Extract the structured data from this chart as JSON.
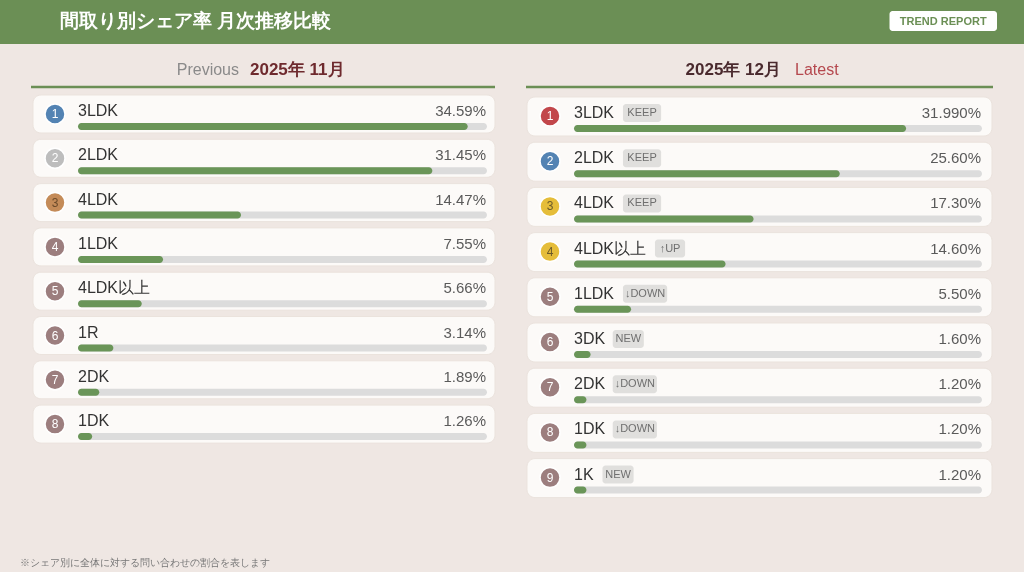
{
  "chart_data": [
    {
      "type": "other",
      "title": "間取り別シェア率 月次推移比較",
      "annotations": [
        "TREND REPORT"
      ]
    },
    {
      "type": "bar",
      "orientation": "horizontal",
      "title": "2025年 11月",
      "subtitle": "Previous",
      "categories": [
        "3LDK",
        "2LDK",
        "4LDK",
        "1LDK",
        "4LDK以上",
        "1R",
        "2DK",
        "1DK"
      ],
      "y2_categories": [
        "1",
        "2",
        "3",
        "4",
        "5",
        "6",
        "7",
        "8"
      ],
      "values": [
        34.59,
        31.45,
        14.47,
        7.55,
        5.66,
        3.14,
        1.89,
        1.26
      ],
      "value_labels": [
        "34.59%",
        "31.45%",
        "14.47%",
        "7.55%",
        "5.66%",
        "3.14%",
        "1.89%",
        "1.26%"
      ],
      "color": "#6a9558",
      "xlim": [
        0,
        36.3
      ],
      "tick_labels": false
    },
    {
      "type": "bar",
      "orientation": "horizontal",
      "title": "2025年 12月",
      "subtitle": "Latest",
      "categories": [
        "3LDK",
        "2LDK",
        "4LDK",
        "4LDK以上",
        "1LDK",
        "3DK",
        "2DK",
        "1DK",
        "1K"
      ],
      "y2_categories": [
        "1",
        "2",
        "3",
        "4",
        "5",
        "6",
        "7",
        "8",
        "9"
      ],
      "values": [
        31.99,
        25.6,
        17.3,
        14.6,
        5.5,
        1.6,
        1.2,
        1.2,
        1.2
      ],
      "value_labels": [
        "31.990%",
        "25.60%",
        "17.30%",
        "14.60%",
        "5.50%",
        "1.60%",
        "1.20%",
        "1.20%",
        "1.20%"
      ],
      "color": "#6a9558",
      "xlim": [
        0,
        39.3
      ],
      "tick_labels": false,
      "annotations": [
        "KEEP",
        "KEEP",
        "KEEP",
        "↑UP",
        "↓DOWN",
        "NEW",
        "↓DOWN",
        "↓DOWN",
        "NEW"
      ]
    },
    {
      "type": "other",
      "annotations": [
        "※シェア別に全体に対する問い合わせの割合を表します"
      ]
    }
  ]
}
